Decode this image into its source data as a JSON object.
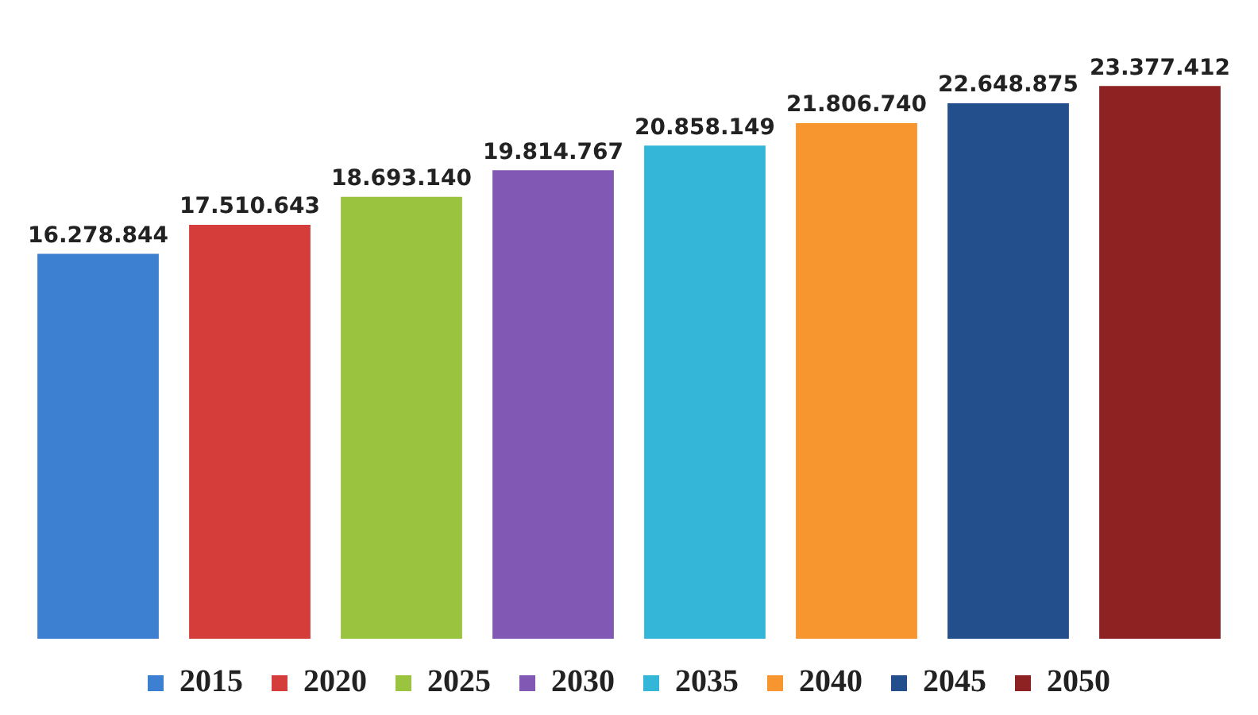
{
  "chart_data": {
    "type": "bar",
    "categories": [
      null,
      null,
      null,
      null,
      null,
      null,
      null,
      null
    ],
    "series": [
      {
        "name": "2015",
        "color": "#3d7fd0",
        "values": [
          16278844,
          null,
          null,
          null,
          null,
          null,
          null,
          null
        ],
        "value_labels": [
          "16.278.844",
          null,
          null,
          null,
          null,
          null,
          null,
          null
        ]
      },
      {
        "name": "2020",
        "color": "#d53d3a",
        "values": [
          null,
          17510643,
          null,
          null,
          null,
          null,
          null,
          null
        ],
        "value_labels": [
          null,
          "17.510.643",
          null,
          null,
          null,
          null,
          null,
          null
        ]
      },
      {
        "name": "2025",
        "color": "#9ac43f",
        "values": [
          null,
          null,
          18693140,
          null,
          null,
          null,
          null,
          null
        ],
        "value_labels": [
          null,
          null,
          "18.693.140",
          null,
          null,
          null,
          null,
          null
        ]
      },
      {
        "name": "2030",
        "color": "#8159b4",
        "values": [
          null,
          null,
          null,
          19814767,
          null,
          null,
          null,
          null
        ],
        "value_labels": [
          null,
          null,
          null,
          "19.814.767",
          null,
          null,
          null,
          null
        ]
      },
      {
        "name": "2035",
        "color": "#34b6d9",
        "values": [
          null,
          null,
          null,
          null,
          20858149,
          null,
          null,
          null
        ],
        "value_labels": [
          null,
          null,
          null,
          null,
          "20.858.149",
          null,
          null,
          null
        ]
      },
      {
        "name": "2040",
        "color": "#f7962f",
        "values": [
          null,
          null,
          null,
          null,
          null,
          21806740,
          null,
          null
        ],
        "value_labels": [
          null,
          null,
          null,
          null,
          null,
          "21.806.740",
          null,
          null
        ]
      },
      {
        "name": "2045",
        "color": "#234f8c",
        "values": [
          null,
          null,
          null,
          null,
          null,
          null,
          22648875,
          null
        ],
        "value_labels": [
          null,
          null,
          null,
          null,
          null,
          null,
          "22.648.875",
          null
        ]
      },
      {
        "name": "2050",
        "color": "#8e2222",
        "values": [
          null,
          null,
          null,
          null,
          null,
          null,
          null,
          23377412
        ],
        "value_labels": [
          null,
          null,
          null,
          null,
          null,
          null,
          null,
          "23.377.412"
        ]
      }
    ],
    "stacked": true,
    "grid": false,
    "legend": "bottom",
    "tick_labels": false
  }
}
